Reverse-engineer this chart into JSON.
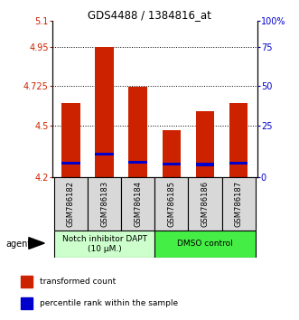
{
  "title": "GDS4488 / 1384816_at",
  "samples": [
    "GSM786182",
    "GSM786183",
    "GSM786184",
    "GSM786185",
    "GSM786186",
    "GSM786187"
  ],
  "bar_bottoms": [
    4.2,
    4.2,
    4.2,
    4.2,
    4.2,
    4.2
  ],
  "bar_tops": [
    4.63,
    4.95,
    4.72,
    4.47,
    4.58,
    4.63
  ],
  "blue_positions": [
    4.285,
    4.335,
    4.29,
    4.28,
    4.275,
    4.285
  ],
  "bar_color": "#cc2200",
  "blue_color": "#0000cc",
  "ylim_min": 4.2,
  "ylim_max": 5.1,
  "yticks_left": [
    4.2,
    4.5,
    4.725,
    4.95,
    5.1
  ],
  "yticks_left_labels": [
    "4.2",
    "4.5",
    "4.725",
    "4.95",
    "5.1"
  ],
  "yticks_right": [
    4.2,
    4.5,
    4.725,
    4.95,
    5.1
  ],
  "yticks_right_labels": [
    "0",
    "25",
    "50",
    "75",
    "100%"
  ],
  "hlines": [
    4.5,
    4.725,
    4.95
  ],
  "group1_label": "Notch inhibitor DAPT\n(10 μM.)",
  "group2_label": "DMSO control",
  "group1_color": "#ccffcc",
  "group2_color": "#44ee44",
  "legend_red": "transformed count",
  "legend_blue": "percentile rank within the sample",
  "agent_label": "agent",
  "bar_width": 0.55
}
